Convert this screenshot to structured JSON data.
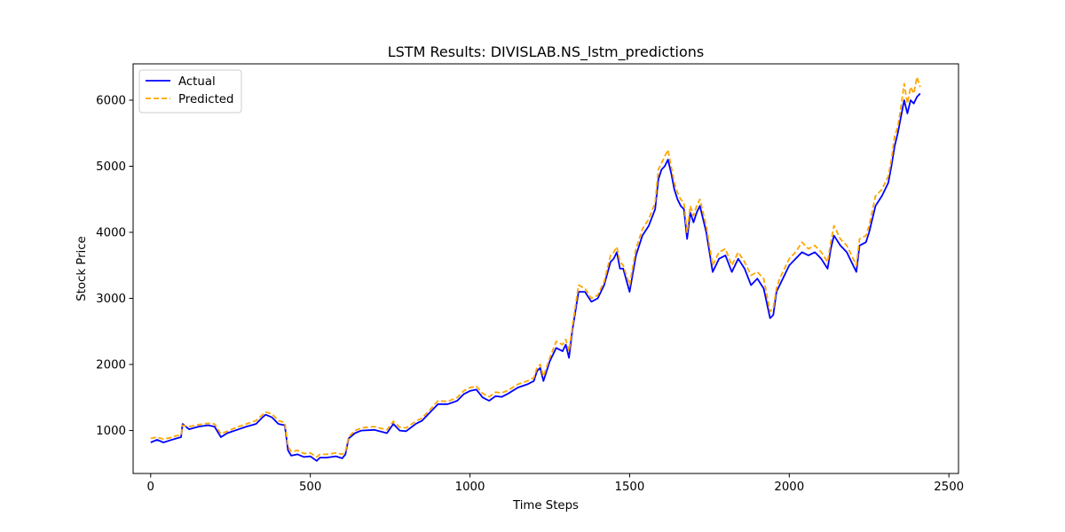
{
  "chart_data": {
    "type": "line",
    "title": "LSTM Results: DIVISLAB.NS_lstm_predictions",
    "xlabel": "Time Steps",
    "ylabel": "Stock Price",
    "xlim": [
      -55,
      2530
    ],
    "ylim": [
      350,
      6550
    ],
    "xticks": [
      0,
      500,
      1000,
      1500,
      2000,
      2500
    ],
    "xtick_labels": [
      "0",
      "500",
      "1000",
      "1500",
      "2000",
      "2500"
    ],
    "yticks": [
      1000,
      2000,
      3000,
      4000,
      5000,
      6000
    ],
    "ytick_labels": [
      "1000",
      "2000",
      "3000",
      "4000",
      "5000",
      "6000"
    ],
    "grid": false,
    "legend_position": "upper-left",
    "series": [
      {
        "name": "Actual",
        "color": "#0000ff",
        "style": "solid",
        "x": [
          0,
          20,
          40,
          60,
          80,
          95,
          100,
          120,
          150,
          180,
          200,
          220,
          240,
          270,
          300,
          330,
          350,
          360,
          380,
          400,
          420,
          430,
          440,
          460,
          480,
          500,
          520,
          530,
          550,
          580,
          600,
          610,
          620,
          640,
          660,
          700,
          740,
          760,
          780,
          800,
          830,
          850,
          870,
          900,
          930,
          960,
          980,
          1000,
          1020,
          1040,
          1060,
          1080,
          1100,
          1120,
          1150,
          1180,
          1200,
          1210,
          1220,
          1230,
          1250,
          1270,
          1290,
          1300,
          1310,
          1320,
          1340,
          1360,
          1380,
          1400,
          1420,
          1440,
          1450,
          1460,
          1470,
          1480,
          1500,
          1520,
          1540,
          1560,
          1580,
          1590,
          1600,
          1610,
          1620,
          1630,
          1640,
          1650,
          1660,
          1670,
          1680,
          1690,
          1700,
          1710,
          1720,
          1740,
          1760,
          1770,
          1780,
          1800,
          1820,
          1840,
          1860,
          1880,
          1900,
          1920,
          1940,
          1950,
          1960,
          1970,
          1980,
          2000,
          2020,
          2040,
          2060,
          2080,
          2100,
          2120,
          2130,
          2140,
          2160,
          2180,
          2200,
          2210,
          2220,
          2240,
          2250,
          2270,
          2290,
          2300,
          2310,
          2320,
          2330,
          2340,
          2350,
          2360,
          2370,
          2380,
          2390,
          2400,
          2410
        ],
        "y": [
          820,
          860,
          820,
          850,
          880,
          900,
          1100,
          1020,
          1060,
          1080,
          1060,
          900,
          960,
          1010,
          1060,
          1100,
          1200,
          1240,
          1200,
          1100,
          1080,
          700,
          620,
          640,
          600,
          610,
          540,
          590,
          590,
          610,
          580,
          640,
          880,
          960,
          1000,
          1010,
          960,
          1100,
          1000,
          990,
          1100,
          1150,
          1250,
          1400,
          1400,
          1450,
          1550,
          1600,
          1620,
          1500,
          1450,
          1520,
          1510,
          1560,
          1650,
          1700,
          1750,
          1900,
          1950,
          1750,
          2050,
          2250,
          2200,
          2300,
          2100,
          2500,
          3100,
          3100,
          2950,
          3000,
          3200,
          3550,
          3600,
          3700,
          3450,
          3450,
          3100,
          3650,
          3950,
          4100,
          4350,
          4800,
          4950,
          5000,
          5100,
          4900,
          4650,
          4500,
          4400,
          4350,
          3900,
          4300,
          4150,
          4300,
          4400,
          4000,
          3400,
          3500,
          3600,
          3650,
          3400,
          3600,
          3450,
          3200,
          3300,
          3150,
          2700,
          2750,
          3100,
          3200,
          3300,
          3500,
          3600,
          3700,
          3650,
          3700,
          3600,
          3450,
          3750,
          3950,
          3800,
          3700,
          3500,
          3400,
          3800,
          3850,
          4000,
          4400,
          4550,
          4650,
          4750,
          5000,
          5300,
          5500,
          5750,
          6000,
          5800,
          6000,
          5950,
          6050,
          6100
        ]
      },
      {
        "name": "Predicted",
        "color": "#ffa500",
        "style": "dashed",
        "x": [
          0,
          20,
          40,
          60,
          80,
          95,
          100,
          120,
          150,
          180,
          200,
          220,
          240,
          270,
          300,
          330,
          350,
          360,
          380,
          400,
          420,
          430,
          440,
          460,
          480,
          500,
          520,
          530,
          550,
          580,
          600,
          610,
          620,
          640,
          660,
          700,
          740,
          760,
          780,
          800,
          830,
          850,
          870,
          900,
          930,
          960,
          980,
          1000,
          1020,
          1040,
          1060,
          1080,
          1100,
          1120,
          1150,
          1180,
          1200,
          1210,
          1220,
          1230,
          1250,
          1270,
          1290,
          1300,
          1310,
          1320,
          1340,
          1360,
          1380,
          1400,
          1420,
          1440,
          1450,
          1460,
          1470,
          1480,
          1500,
          1520,
          1540,
          1560,
          1580,
          1590,
          1600,
          1610,
          1620,
          1630,
          1640,
          1650,
          1660,
          1670,
          1680,
          1690,
          1700,
          1710,
          1720,
          1740,
          1760,
          1770,
          1780,
          1800,
          1820,
          1840,
          1860,
          1880,
          1900,
          1920,
          1940,
          1950,
          1960,
          1970,
          1980,
          2000,
          2020,
          2040,
          2060,
          2080,
          2100,
          2120,
          2130,
          2140,
          2160,
          2180,
          2200,
          2210,
          2220,
          2240,
          2250,
          2270,
          2290,
          2300,
          2310,
          2320,
          2330,
          2340,
          2350,
          2360,
          2370,
          2380,
          2390,
          2400,
          2410
        ],
        "y": [
          880,
          900,
          870,
          890,
          920,
          930,
          1080,
          1060,
          1090,
          1110,
          1100,
          950,
          990,
          1050,
          1100,
          1150,
          1240,
          1280,
          1250,
          1150,
          1120,
          760,
          680,
          700,
          650,
          660,
          600,
          640,
          640,
          660,
          640,
          680,
          900,
          1000,
          1040,
          1060,
          1010,
          1140,
          1050,
          1040,
          1140,
          1190,
          1290,
          1450,
          1440,
          1500,
          1600,
          1650,
          1670,
          1560,
          1510,
          1580,
          1570,
          1610,
          1700,
          1750,
          1800,
          1950,
          2000,
          1820,
          2100,
          2350,
          2300,
          2380,
          2200,
          2550,
          3200,
          3150,
          3000,
          3050,
          3250,
          3650,
          3700,
          3780,
          3550,
          3500,
          3200,
          3750,
          4050,
          4200,
          4450,
          4950,
          5050,
          5150,
          5250,
          5000,
          4750,
          4600,
          4500,
          4450,
          4000,
          4400,
          4250,
          4400,
          4500,
          4100,
          3500,
          3600,
          3700,
          3750,
          3500,
          3700,
          3550,
          3350,
          3400,
          3300,
          2800,
          2850,
          3150,
          3300,
          3400,
          3600,
          3700,
          3850,
          3750,
          3800,
          3700,
          3550,
          3850,
          4100,
          3900,
          3800,
          3600,
          3500,
          3900,
          3950,
          4100,
          4550,
          4650,
          4750,
          4850,
          5100,
          5450,
          5600,
          5900,
          6250,
          5950,
          6200,
          6100,
          6350,
          6200
        ]
      }
    ]
  }
}
